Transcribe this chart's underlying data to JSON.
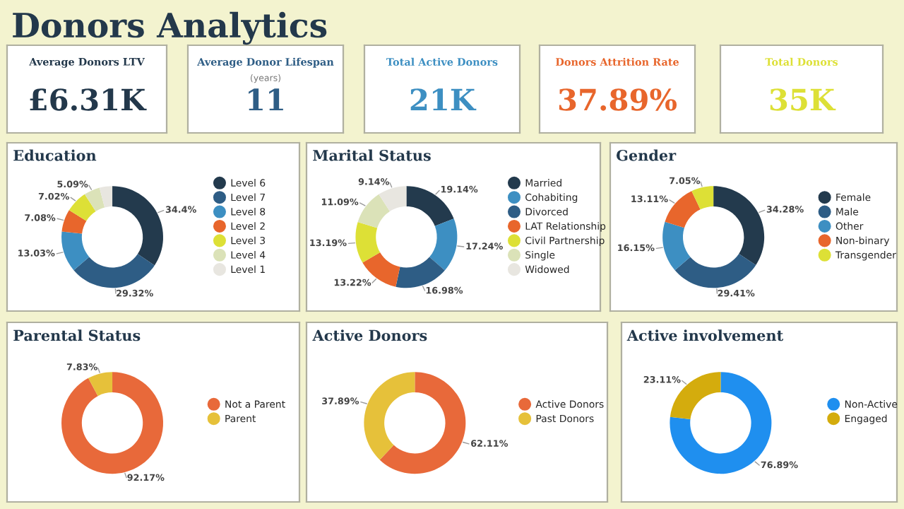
{
  "chart_data": [
    {
      "type": "other",
      "title": "Donors Analytics"
    },
    {
      "type": "other",
      "title": "Average Donors LTV",
      "annotations": [
        "£6.31K"
      ]
    },
    {
      "type": "other",
      "title": "Average Donor Lifespan",
      "subtitle": "(years)",
      "annotations": [
        "11"
      ]
    },
    {
      "type": "other",
      "title": "Total Active Donors",
      "annotations": [
        "21K"
      ]
    },
    {
      "type": "other",
      "title": "Donors Attrition Rate",
      "annotations": [
        "37.89%"
      ]
    },
    {
      "type": "other",
      "title": "Total Donors",
      "annotations": [
        "35K"
      ]
    },
    {
      "type": "donut",
      "title": "Education",
      "legend": "right",
      "categories": [
        "Level 6",
        "Level 7",
        "Level 8",
        "Level 2",
        "Level 3",
        "Level 4",
        "Level 1"
      ],
      "values": [
        34.4,
        29.32,
        13.03,
        7.08,
        7.02,
        5.09,
        4.06
      ],
      "value_labels": [
        "34.4%",
        "29.32%",
        "13.03%",
        "7.08%",
        "7.02%",
        "5.09%",
        null
      ],
      "colors": [
        "#233a4d",
        "#2e5d85",
        "#3d8fc2",
        "#e8662c",
        "#dde036",
        "#dbe2b8",
        "#e8e6e0"
      ]
    },
    {
      "type": "donut",
      "title": "Marital Status",
      "legend": "right",
      "categories": [
        "Married",
        "Cohabiting",
        "Divorced",
        "LAT Relationship",
        "Civil Partnership",
        "Single",
        "Widowed"
      ],
      "values": [
        19.14,
        17.24,
        16.98,
        13.22,
        13.19,
        11.09,
        9.14
      ],
      "value_labels": [
        "19.14%",
        "17.24%",
        "16.98%",
        "13.22%",
        "13.19%",
        "11.09%",
        "9.14%"
      ],
      "colors": [
        "#233a4d",
        "#3d8fc2",
        "#2e5d85",
        "#e8662c",
        "#dde036",
        "#dbe2b8",
        "#e8e6e0"
      ]
    },
    {
      "type": "donut",
      "title": "Gender",
      "legend": "right",
      "categories": [
        "Female",
        "Male",
        "Other",
        "Non-binary",
        "Transgender"
      ],
      "values": [
        34.28,
        29.41,
        16.15,
        13.11,
        7.05
      ],
      "value_labels": [
        "34.28%",
        "29.41%",
        "16.15%",
        "13.11%",
        "7.05%"
      ],
      "colors": [
        "#233a4d",
        "#2e5d85",
        "#3d8fc2",
        "#e8662c",
        "#dde036"
      ]
    },
    {
      "type": "donut",
      "title": "Parental Status",
      "legend": "right",
      "categories": [
        "Not a Parent",
        "Parent"
      ],
      "values": [
        92.17,
        7.83
      ],
      "value_labels": [
        "92.17%",
        "7.83%"
      ],
      "colors": [
        "#e8693a",
        "#e6c13a"
      ]
    },
    {
      "type": "donut",
      "title": "Active Donors",
      "legend": "right",
      "categories": [
        "Active Donors",
        "Past Donors"
      ],
      "values": [
        62.11,
        37.89
      ],
      "value_labels": [
        "62.11%",
        "37.89%"
      ],
      "colors": [
        "#e8693a",
        "#e6c13a"
      ]
    },
    {
      "type": "donut",
      "title": "Active involvement",
      "legend": "right",
      "categories": [
        "Non-Active",
        "Engaged"
      ],
      "values": [
        76.89,
        23.11
      ],
      "value_labels": [
        "76.89%",
        "23.11%"
      ],
      "colors": [
        "#1f8fef",
        "#d4ac0d"
      ]
    }
  ]
}
